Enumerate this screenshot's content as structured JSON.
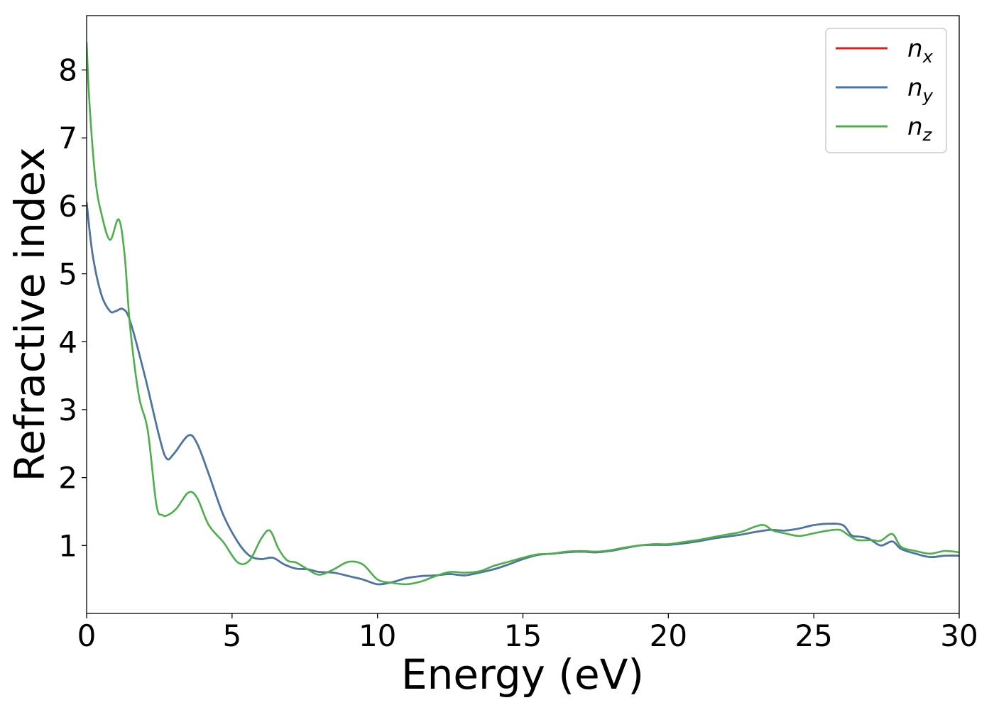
{
  "chart_data": {
    "type": "line",
    "title": "",
    "xlabel": "Energy (eV)",
    "ylabel": "Refractive index",
    "xlim": [
      0,
      30
    ],
    "ylim": [
      0,
      8.8
    ],
    "xticks": [
      0,
      5,
      10,
      15,
      20,
      25,
      30
    ],
    "xtick_labels": [
      "0",
      "5",
      "10",
      "15",
      "20",
      "25",
      "30"
    ],
    "yticks": [
      1,
      2,
      3,
      4,
      5,
      6,
      7,
      8
    ],
    "ytick_labels": [
      "1",
      "2",
      "3",
      "4",
      "5",
      "6",
      "7",
      "8"
    ],
    "grid": false,
    "legend_position": "top-right",
    "series": [
      {
        "name": "n",
        "subscript": "x",
        "color": "#e41a1c",
        "x": [
          0,
          0.2,
          0.5,
          0.8,
          1.0,
          1.25,
          1.5,
          2.0,
          2.5,
          2.75,
          3.0,
          3.5,
          3.8,
          4.2,
          4.7,
          5.2,
          5.6,
          6.0,
          6.4,
          6.8,
          7.2,
          7.6,
          8.0,
          8.5,
          9.0,
          9.5,
          10.0,
          10.5,
          11.0,
          11.5,
          12.0,
          12.5,
          13.0,
          13.5,
          14.0,
          14.5,
          15.0,
          15.5,
          16.0,
          16.5,
          17.0,
          17.5,
          18.0,
          18.5,
          19.0,
          19.5,
          20.0,
          20.5,
          21.0,
          21.5,
          22.0,
          22.5,
          23.0,
          23.5,
          24.0,
          24.5,
          25.0,
          25.5,
          26.0,
          26.3,
          26.6,
          26.9,
          27.3,
          27.7,
          28.0,
          28.5,
          29.0,
          29.5,
          30.0
        ],
        "y": [
          6.05,
          5.3,
          4.7,
          4.45,
          4.45,
          4.48,
          4.3,
          3.5,
          2.6,
          2.28,
          2.35,
          2.62,
          2.5,
          2.05,
          1.45,
          1.05,
          0.85,
          0.8,
          0.82,
          0.72,
          0.66,
          0.65,
          0.61,
          0.6,
          0.55,
          0.5,
          0.43,
          0.46,
          0.52,
          0.55,
          0.56,
          0.58,
          0.56,
          0.6,
          0.65,
          0.72,
          0.8,
          0.86,
          0.88,
          0.9,
          0.91,
          0.9,
          0.92,
          0.96,
          1.0,
          1.01,
          1.01,
          1.03,
          1.06,
          1.1,
          1.13,
          1.16,
          1.2,
          1.23,
          1.22,
          1.25,
          1.3,
          1.32,
          1.3,
          1.15,
          1.13,
          1.1,
          1.0,
          1.06,
          0.95,
          0.88,
          0.83,
          0.85,
          0.85
        ]
      },
      {
        "name": "n",
        "subscript": "y",
        "color": "#4477aa",
        "x": [
          0,
          0.2,
          0.5,
          0.8,
          1.0,
          1.25,
          1.5,
          2.0,
          2.5,
          2.75,
          3.0,
          3.5,
          3.8,
          4.2,
          4.7,
          5.2,
          5.6,
          6.0,
          6.4,
          6.8,
          7.2,
          7.6,
          8.0,
          8.5,
          9.0,
          9.5,
          10.0,
          10.5,
          11.0,
          11.5,
          12.0,
          12.5,
          13.0,
          13.5,
          14.0,
          14.5,
          15.0,
          15.5,
          16.0,
          16.5,
          17.0,
          17.5,
          18.0,
          18.5,
          19.0,
          19.5,
          20.0,
          20.5,
          21.0,
          21.5,
          22.0,
          22.5,
          23.0,
          23.5,
          24.0,
          24.5,
          25.0,
          25.5,
          26.0,
          26.3,
          26.6,
          26.9,
          27.3,
          27.7,
          28.0,
          28.5,
          29.0,
          29.5,
          30.0
        ],
        "y": [
          6.05,
          5.3,
          4.7,
          4.45,
          4.45,
          4.48,
          4.3,
          3.5,
          2.6,
          2.28,
          2.35,
          2.62,
          2.5,
          2.05,
          1.45,
          1.05,
          0.85,
          0.8,
          0.82,
          0.72,
          0.66,
          0.65,
          0.61,
          0.6,
          0.55,
          0.5,
          0.43,
          0.46,
          0.52,
          0.55,
          0.56,
          0.58,
          0.56,
          0.6,
          0.65,
          0.72,
          0.8,
          0.86,
          0.88,
          0.9,
          0.91,
          0.9,
          0.92,
          0.96,
          1.0,
          1.01,
          1.01,
          1.03,
          1.06,
          1.1,
          1.13,
          1.16,
          1.2,
          1.23,
          1.22,
          1.25,
          1.3,
          1.32,
          1.3,
          1.15,
          1.13,
          1.1,
          1.0,
          1.06,
          0.95,
          0.88,
          0.83,
          0.85,
          0.85
        ]
      },
      {
        "name": "n",
        "subscript": "z",
        "color": "#4daf4a",
        "x": [
          0,
          0.1,
          0.3,
          0.5,
          0.8,
          1.1,
          1.3,
          1.5,
          1.8,
          2.1,
          2.4,
          2.6,
          2.8,
          3.1,
          3.5,
          3.8,
          4.2,
          4.7,
          5.2,
          5.6,
          6.0,
          6.3,
          6.6,
          6.9,
          7.2,
          7.6,
          8.0,
          8.5,
          9.0,
          9.5,
          10.0,
          10.5,
          11.0,
          11.5,
          12.0,
          12.5,
          13.0,
          13.5,
          14.0,
          14.5,
          15.0,
          15.5,
          16.0,
          16.5,
          17.0,
          17.5,
          18.0,
          18.5,
          19.0,
          19.5,
          20.0,
          20.5,
          21.0,
          21.5,
          22.0,
          22.5,
          23.0,
          23.3,
          23.6,
          24.0,
          24.5,
          25.0,
          25.5,
          25.9,
          26.2,
          26.5,
          27.0,
          27.3,
          27.7,
          28.0,
          28.5,
          29.0,
          29.5,
          30.0
        ],
        "y": [
          8.4,
          7.5,
          6.4,
          5.9,
          5.5,
          5.8,
          5.3,
          4.2,
          3.2,
          2.7,
          1.6,
          1.45,
          1.45,
          1.55,
          1.78,
          1.7,
          1.3,
          1.05,
          0.75,
          0.78,
          1.1,
          1.22,
          0.95,
          0.78,
          0.75,
          0.65,
          0.57,
          0.65,
          0.76,
          0.72,
          0.5,
          0.45,
          0.43,
          0.47,
          0.55,
          0.61,
          0.6,
          0.62,
          0.7,
          0.76,
          0.82,
          0.87,
          0.88,
          0.91,
          0.92,
          0.91,
          0.93,
          0.97,
          1.0,
          1.02,
          1.02,
          1.05,
          1.08,
          1.12,
          1.16,
          1.2,
          1.28,
          1.3,
          1.22,
          1.18,
          1.14,
          1.18,
          1.22,
          1.23,
          1.15,
          1.08,
          1.08,
          1.07,
          1.17,
          0.98,
          0.92,
          0.88,
          0.92,
          0.9
        ]
      }
    ]
  }
}
